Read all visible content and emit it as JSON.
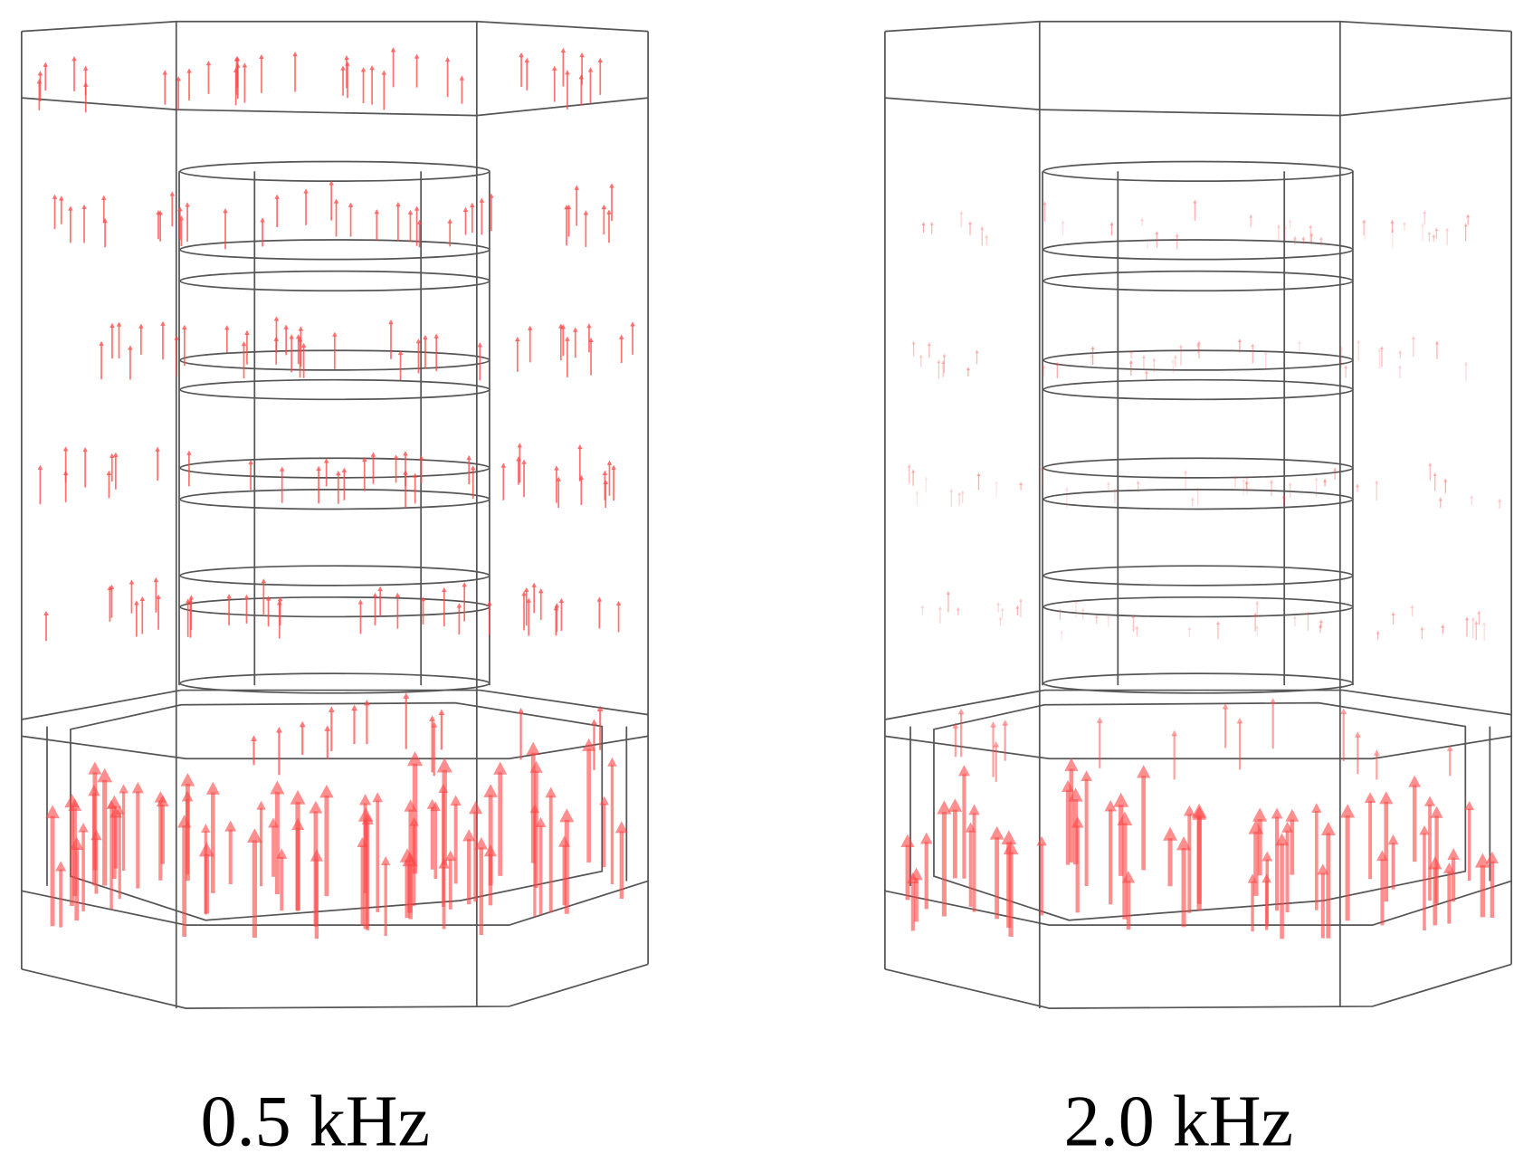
{
  "panels": [
    {
      "label": "0.5 kHz"
    },
    {
      "label": "2.0 kHz"
    }
  ]
}
